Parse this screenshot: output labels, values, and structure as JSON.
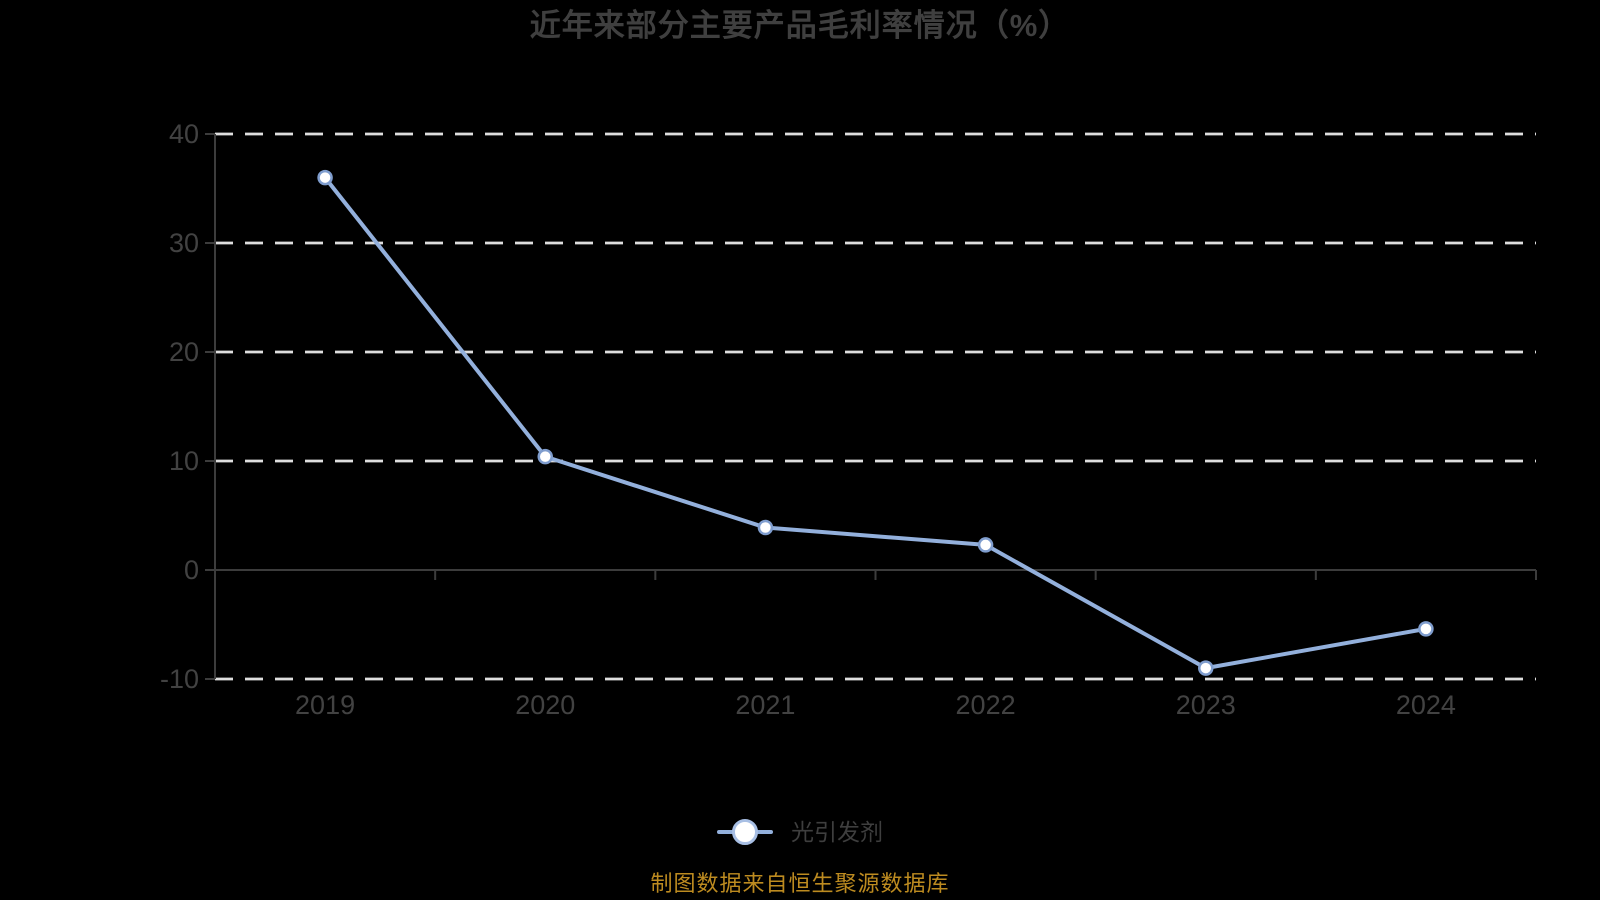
{
  "chart_data": {
    "type": "line",
    "title": "近年来部分主要产品毛利率情况（%）",
    "categories": [
      "2019",
      "2020",
      "2021",
      "2022",
      "2023",
      "2024"
    ],
    "series": [
      {
        "name": "光引发剂",
        "values": [
          36.0,
          10.4,
          3.9,
          2.3,
          -9.0,
          -5.4
        ]
      }
    ],
    "xlabel": "",
    "ylabel": "",
    "ylim": [
      -10,
      40
    ],
    "y_ticks": [
      40,
      30,
      20,
      10,
      0,
      -10
    ],
    "grid": "horizontal-dashed",
    "legend_position": "bottom"
  },
  "legend": {
    "items": [
      {
        "label": "光引发剂",
        "marker": "circle-on-line"
      }
    ]
  },
  "footer": {
    "source_note": "制图数据来自恒生聚源数据库"
  },
  "colors": {
    "background": "#000000",
    "title_text": "#3F3F3F",
    "axis_label": "#424242",
    "axis_line": "#3C3C3C",
    "gridline": "#DEDEDE",
    "series_line": "#93B0DC",
    "marker_fill": "#FFFFFF",
    "marker_border": "#7F9DCE",
    "legend_marker_border": "#A8BFE4",
    "legend_label": "#3E3E3E",
    "source_note_text": "#BD8B20"
  }
}
